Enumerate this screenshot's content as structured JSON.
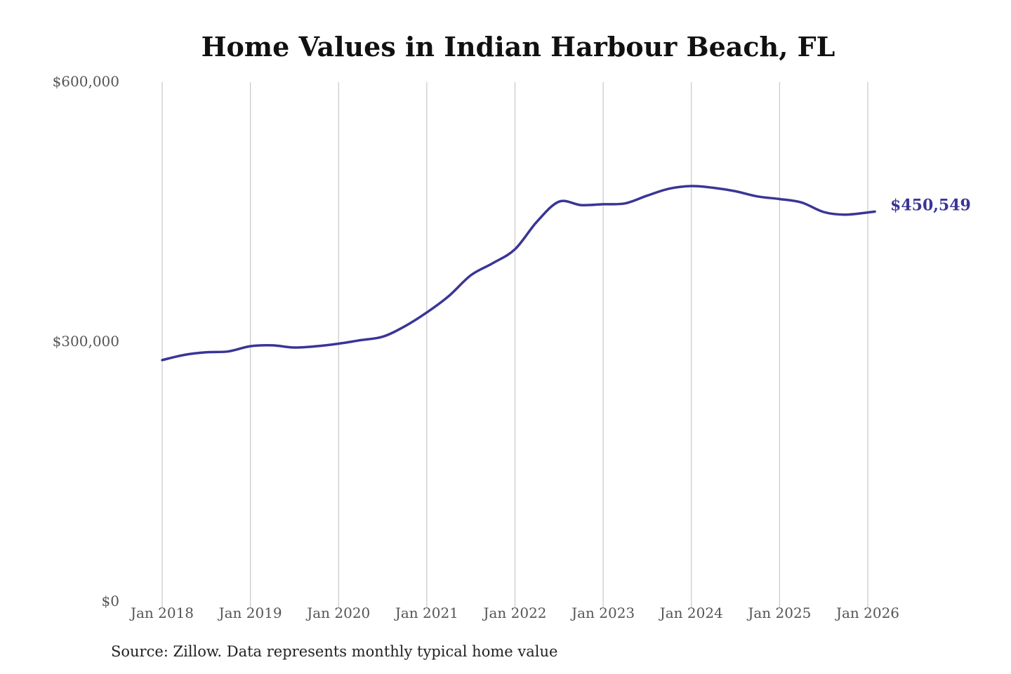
{
  "chart_data": {
    "type": "line",
    "title": "Home Values in Indian Harbour Beach, FL",
    "source": "Source: Zillow. Data represents monthly typical home value",
    "xlabel": "",
    "ylabel": "",
    "ylim": [
      0,
      600000
    ],
    "yticks": [
      0,
      300000,
      600000
    ],
    "ytick_labels": [
      "$0",
      "$300,000",
      "$600,000"
    ],
    "xlim": [
      2018.0,
      2026.0
    ],
    "xticks": [
      2018,
      2019,
      2020,
      2021,
      2022,
      2023,
      2024,
      2025,
      2026
    ],
    "xtick_labels": [
      "Jan 2018",
      "Jan 2019",
      "Jan 2020",
      "Jan 2021",
      "Jan 2022",
      "Jan 2023",
      "Jan 2024",
      "Jan 2025",
      "Jan 2026"
    ],
    "grid": "vertical",
    "line_color": "#3a3596",
    "end_label": "$450,549",
    "series": [
      {
        "name": "Typical home value",
        "x": [
          2018.0,
          2018.25,
          2018.5,
          2018.75,
          2019.0,
          2019.25,
          2019.5,
          2019.75,
          2020.0,
          2020.25,
          2020.5,
          2020.75,
          2021.0,
          2021.25,
          2021.5,
          2021.75,
          2022.0,
          2022.25,
          2022.5,
          2022.75,
          2023.0,
          2023.25,
          2023.5,
          2023.75,
          2024.0,
          2024.25,
          2024.5,
          2024.75,
          2025.0,
          2025.25,
          2025.5,
          2025.75,
          2026.08
        ],
        "values": [
          279000,
          285000,
          288000,
          289000,
          295000,
          296000,
          293500,
          295000,
          298000,
          302000,
          306000,
          318000,
          334000,
          353000,
          377000,
          391000,
          407000,
          439000,
          462000,
          458000,
          459000,
          460000,
          469000,
          477000,
          480000,
          478000,
          474000,
          468000,
          465000,
          461000,
          450000,
          447000,
          450549
        ]
      }
    ]
  }
}
